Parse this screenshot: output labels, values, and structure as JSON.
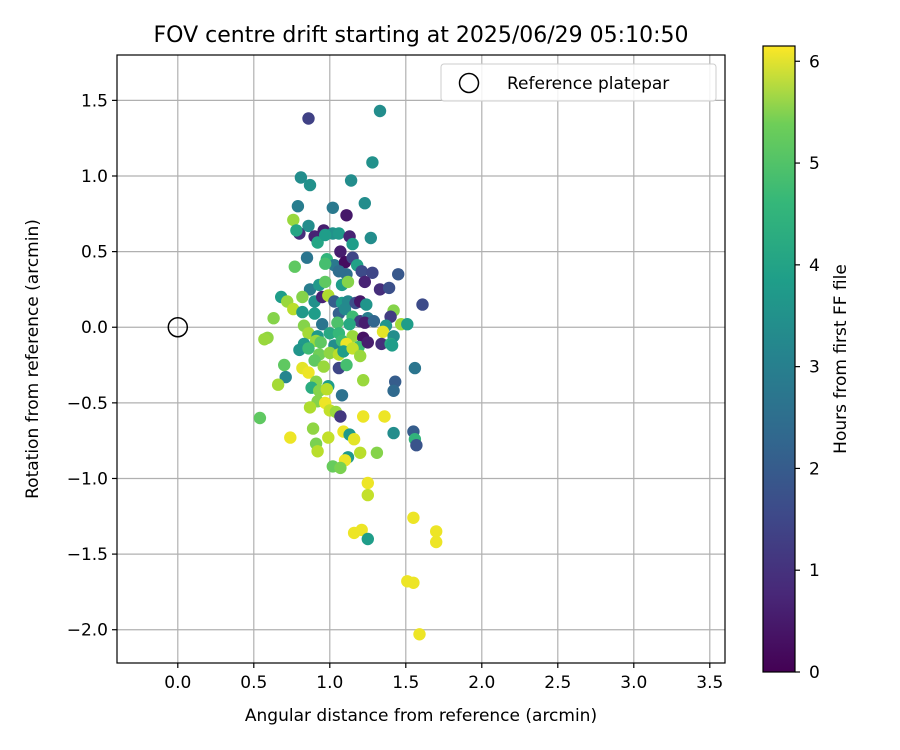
{
  "chart_data": {
    "type": "scatter",
    "title": "FOV centre drift starting at 2025/06/29 05:10:50",
    "xlabel": "Angular distance from reference (arcmin)",
    "ylabel": "Rotation from reference (arcmin)",
    "xlim": [
      -0.4,
      3.6
    ],
    "ylim": [
      -2.22,
      1.8
    ],
    "xticks": [
      "0.0",
      "0.5",
      "1.0",
      "1.5",
      "2.0",
      "2.5",
      "3.0",
      "3.5"
    ],
    "xtick_values": [
      0,
      0.5,
      1,
      1.5,
      2,
      2.5,
      3,
      3.5
    ],
    "yticks": [
      "1.5",
      "1.0",
      "0.5",
      "0.0",
      "−0.5",
      "−1.0",
      "−1.5",
      "−2.0"
    ],
    "ytick_values": [
      1.5,
      1.0,
      0.5,
      0,
      -0.5,
      -1.0,
      -1.5,
      -2.0
    ],
    "grid": true,
    "legend": {
      "label": "Reference platepar",
      "position": "top-right"
    },
    "reference_point": {
      "x": 0.0,
      "y": 0.0
    },
    "colorbar": {
      "label": "Hours from first FF file",
      "ticks": [
        "0",
        "1",
        "2",
        "3",
        "4",
        "5",
        "6"
      ],
      "tick_values": [
        0,
        1,
        2,
        3,
        4,
        5,
        6
      ],
      "range": [
        0,
        6.15
      ],
      "colormap": "viridis"
    },
    "series": [
      {
        "points": [
          [
            0.86,
            1.38,
            1.2
          ],
          [
            1.33,
            1.43,
            3.0
          ],
          [
            1.28,
            1.09,
            3.1
          ],
          [
            0.81,
            0.99,
            3.0
          ],
          [
            0.87,
            0.94,
            3.1
          ],
          [
            1.14,
            0.97,
            3.0
          ],
          [
            1.23,
            0.82,
            3.0
          ],
          [
            0.79,
            0.8,
            2.6
          ],
          [
            1.02,
            0.79,
            2.5
          ],
          [
            1.11,
            0.74,
            0.4
          ],
          [
            0.76,
            0.71,
            5.2
          ],
          [
            1.27,
            0.59,
            3.0
          ],
          [
            0.8,
            0.62,
            0.8
          ],
          [
            0.86,
            0.67,
            3.0
          ],
          [
            0.9,
            0.6,
            0.6
          ],
          [
            0.96,
            0.64,
            0.5
          ],
          [
            1.02,
            0.62,
            3.1
          ],
          [
            1.06,
            0.62,
            3.3
          ],
          [
            1.13,
            0.6,
            0.6
          ],
          [
            1.15,
            0.55,
            3.4
          ],
          [
            0.78,
            0.64,
            3.6
          ],
          [
            0.92,
            0.56,
            3.6
          ],
          [
            0.97,
            0.61,
            3.4
          ],
          [
            1.07,
            0.5,
            0.5
          ],
          [
            0.85,
            0.46,
            2.4
          ],
          [
            0.98,
            0.45,
            4.0
          ],
          [
            1.03,
            0.41,
            2.5
          ],
          [
            1.1,
            0.43,
            0.2
          ],
          [
            1.15,
            0.46,
            1.3
          ],
          [
            1.18,
            0.41,
            3.5
          ],
          [
            1.21,
            0.37,
            1.4
          ],
          [
            1.28,
            0.36,
            1.3
          ],
          [
            1.11,
            0.35,
            2.2
          ],
          [
            1.06,
            0.37,
            2.2
          ],
          [
            0.77,
            0.4,
            4.6
          ],
          [
            0.97,
            0.42,
            4.3
          ],
          [
            1.45,
            0.35,
            1.7
          ],
          [
            1.23,
            0.3,
            0.6
          ],
          [
            1.33,
            0.25,
            0.8
          ],
          [
            1.39,
            0.26,
            1.5
          ],
          [
            0.68,
            0.2,
            3.4
          ],
          [
            0.87,
            0.25,
            2.6
          ],
          [
            0.93,
            0.28,
            3.3
          ],
          [
            0.97,
            0.3,
            4.6
          ],
          [
            1.08,
            0.28,
            3.4
          ],
          [
            1.12,
            0.3,
            5.0
          ],
          [
            0.72,
            0.17,
            5.2
          ],
          [
            0.82,
            0.2,
            5.0
          ],
          [
            0.9,
            0.17,
            3.1
          ],
          [
            0.95,
            0.2,
            0.6
          ],
          [
            0.99,
            0.21,
            5.4
          ],
          [
            1.03,
            0.17,
            1.8
          ],
          [
            1.08,
            0.16,
            3.4
          ],
          [
            1.12,
            0.17,
            2.9
          ],
          [
            1.17,
            0.16,
            1.5
          ],
          [
            1.2,
            0.17,
            0.4
          ],
          [
            1.24,
            0.15,
            3.2
          ],
          [
            1.61,
            0.15,
            1.4
          ],
          [
            0.76,
            0.12,
            5.5
          ],
          [
            0.82,
            0.1,
            3.3
          ],
          [
            0.9,
            0.09,
            3.4
          ],
          [
            1.06,
            0.09,
            1.9
          ],
          [
            1.1,
            0.12,
            2.9
          ],
          [
            1.15,
            0.07,
            4.2
          ],
          [
            1.2,
            0.04,
            1.1
          ],
          [
            1.25,
            0.06,
            2.6
          ],
          [
            1.42,
            0.11,
            5.0
          ],
          [
            1.4,
            0.07,
            1.1
          ],
          [
            0.63,
            0.06,
            5.0
          ],
          [
            0.83,
            0.01,
            5.0
          ],
          [
            0.95,
            0.02,
            2.4
          ],
          [
            1.05,
            0.03,
            4.4
          ],
          [
            1.13,
            0.02,
            3.7
          ],
          [
            1.23,
            0.03,
            0.5
          ],
          [
            1.29,
            0.04,
            2.0
          ],
          [
            1.37,
            0.01,
            3.2
          ],
          [
            1.47,
            0.02,
            5.3
          ],
          [
            1.51,
            0.02,
            3.4
          ],
          [
            0.86,
            -0.04,
            5.3
          ],
          [
            0.92,
            -0.06,
            3.3
          ],
          [
            1.0,
            -0.04,
            3.7
          ],
          [
            1.06,
            -0.04,
            4.1
          ],
          [
            1.15,
            -0.06,
            5.2
          ],
          [
            1.22,
            -0.07,
            0.3
          ],
          [
            1.35,
            -0.03,
            5.9
          ],
          [
            1.42,
            -0.06,
            3.0
          ],
          [
            0.59,
            -0.07,
            5.1
          ],
          [
            0.57,
            -0.08,
            5.2
          ],
          [
            0.83,
            -0.11,
            3.3
          ],
          [
            0.91,
            -0.09,
            5.2
          ],
          [
            0.94,
            -0.1,
            4.6
          ],
          [
            1.03,
            -0.12,
            3.0
          ],
          [
            1.08,
            -0.09,
            4.2
          ],
          [
            1.11,
            -0.11,
            6.0
          ],
          [
            1.19,
            -0.13,
            4.2
          ],
          [
            1.25,
            -0.1,
            0.5
          ],
          [
            1.34,
            -0.11,
            0.8
          ],
          [
            1.4,
            -0.11,
            3.7
          ],
          [
            1.41,
            -0.12,
            3.4
          ],
          [
            0.8,
            -0.15,
            3.2
          ],
          [
            0.86,
            -0.14,
            4.2
          ],
          [
            0.93,
            -0.18,
            4.8
          ],
          [
            1.0,
            -0.17,
            5.1
          ],
          [
            1.06,
            -0.18,
            5.5
          ],
          [
            1.09,
            -0.16,
            3.4
          ],
          [
            1.15,
            -0.14,
            5.6
          ],
          [
            1.2,
            -0.19,
            5.2
          ],
          [
            0.9,
            -0.22,
            4.6
          ],
          [
            0.96,
            -0.26,
            5.2
          ],
          [
            1.06,
            -0.27,
            1.3
          ],
          [
            1.11,
            -0.25,
            4.3
          ],
          [
            0.7,
            -0.25,
            4.6
          ],
          [
            0.82,
            -0.27,
            5.9
          ],
          [
            0.86,
            -0.3,
            6.0
          ],
          [
            1.56,
            -0.27,
            2.4
          ],
          [
            0.71,
            -0.33,
            2.8
          ],
          [
            0.66,
            -0.38,
            5.3
          ],
          [
            0.91,
            -0.36,
            5.0
          ],
          [
            0.99,
            -0.39,
            3.4
          ],
          [
            1.22,
            -0.35,
            5.2
          ],
          [
            1.43,
            -0.36,
            1.8
          ],
          [
            0.88,
            -0.4,
            3.8
          ],
          [
            0.93,
            -0.42,
            5.0
          ],
          [
            0.98,
            -0.41,
            5.5
          ],
          [
            1.08,
            -0.45,
            2.3
          ],
          [
            1.42,
            -0.42,
            2.1
          ],
          [
            0.92,
            -0.49,
            5.0
          ],
          [
            0.97,
            -0.5,
            6.0
          ],
          [
            1.0,
            -0.55,
            5.6
          ],
          [
            0.87,
            -0.53,
            5.4
          ],
          [
            1.04,
            -0.56,
            5.2
          ],
          [
            1.07,
            -0.59,
            1.0
          ],
          [
            1.22,
            -0.59,
            6.0
          ],
          [
            1.36,
            -0.59,
            6.0
          ],
          [
            0.54,
            -0.6,
            4.6
          ],
          [
            0.89,
            -0.67,
            5.1
          ],
          [
            1.09,
            -0.69,
            6.0
          ],
          [
            1.13,
            -0.71,
            3.3
          ],
          [
            1.16,
            -0.74,
            5.9
          ],
          [
            1.42,
            -0.7,
            3.0
          ],
          [
            1.55,
            -0.69,
            1.8
          ],
          [
            1.56,
            -0.74,
            4.0
          ],
          [
            1.57,
            -0.78,
            1.6
          ],
          [
            0.74,
            -0.73,
            6.0
          ],
          [
            0.99,
            -0.73,
            5.6
          ],
          [
            0.91,
            -0.77,
            4.9
          ],
          [
            0.92,
            -0.82,
            5.5
          ],
          [
            1.2,
            -0.83,
            5.5
          ],
          [
            1.31,
            -0.83,
            5.0
          ],
          [
            1.12,
            -0.86,
            3.3
          ],
          [
            1.1,
            -0.88,
            6.0
          ],
          [
            1.02,
            -0.92,
            4.7
          ],
          [
            1.07,
            -0.93,
            4.9
          ],
          [
            1.25,
            -1.03,
            6.0
          ],
          [
            1.25,
            -1.11,
            5.6
          ],
          [
            1.55,
            -1.26,
            6.0
          ],
          [
            1.7,
            -1.35,
            6.0
          ],
          [
            1.7,
            -1.42,
            6.0
          ],
          [
            1.21,
            -1.34,
            6.0
          ],
          [
            1.16,
            -1.36,
            6.0
          ],
          [
            1.25,
            -1.4,
            3.4
          ],
          [
            1.51,
            -1.68,
            6.0
          ],
          [
            1.55,
            -1.69,
            6.0
          ],
          [
            1.59,
            -2.03,
            6.0
          ]
        ]
      }
    ]
  }
}
